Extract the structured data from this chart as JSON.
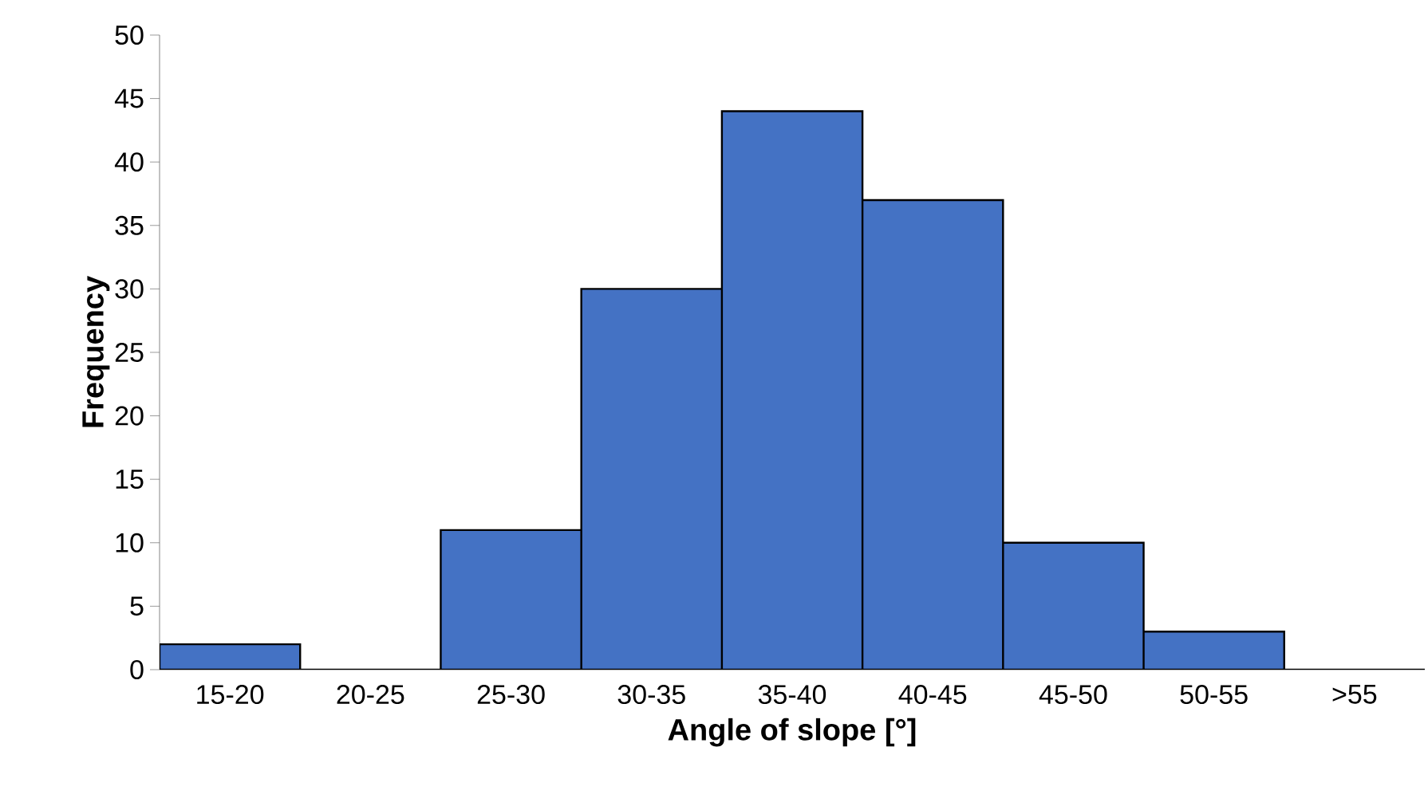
{
  "chart_data": {
    "type": "bar",
    "xlabel": "Angle of slope [°]",
    "ylabel": "Frequency",
    "categories": [
      "15-20",
      "20-25",
      "25-30",
      "30-35",
      "35-40",
      "40-45",
      "45-50",
      "50-55",
      ">55"
    ],
    "values": [
      2,
      0,
      11,
      30,
      44,
      37,
      10,
      3,
      0
    ],
    "color": "#4472c4",
    "ylim": [
      0,
      50
    ],
    "yticks": [
      0,
      5,
      10,
      15,
      20,
      25,
      30,
      35,
      40,
      45,
      50
    ]
  }
}
